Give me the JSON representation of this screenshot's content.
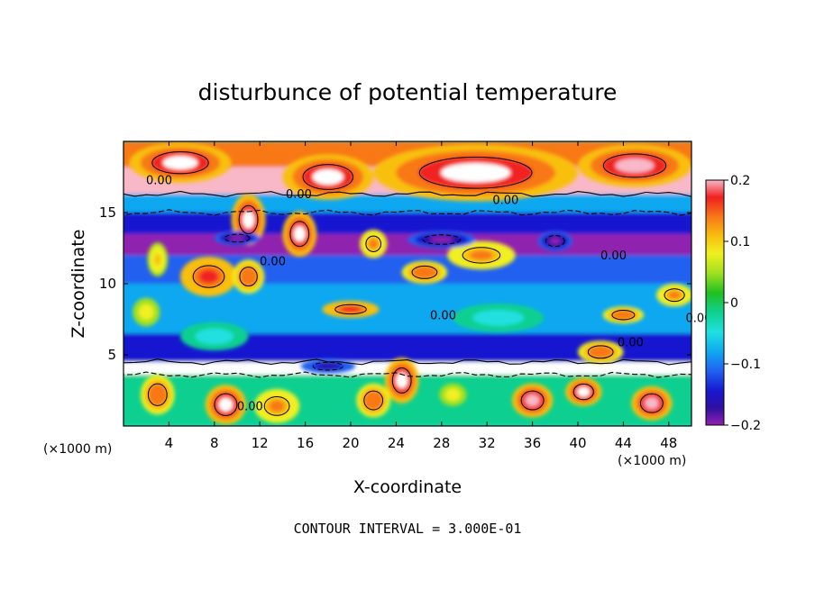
{
  "chart_data": {
    "type": "heatmap",
    "title": "disturbunce of potential temperature",
    "xlabel": "X-coordinate",
    "ylabel": "Z-coordinate",
    "x_unit_left": "(×1000 m)",
    "x_unit_right": "(×1000 m)",
    "xlim": [
      0,
      50
    ],
    "ylim": [
      0,
      20
    ],
    "x_ticks": [
      "4",
      "8",
      "12",
      "16",
      "20",
      "24",
      "28",
      "32",
      "36",
      "40",
      "44",
      "48"
    ],
    "y_ticks": [
      "5",
      "10",
      "15"
    ],
    "colorbar": {
      "ticks": [
        "0.2",
        "0.1",
        "0",
        "−0.1",
        "−0.2"
      ],
      "range": [
        -0.2,
        0.2
      ],
      "colors": [
        "#f8b8c8",
        "#f02020",
        "#f87818",
        "#f8c010",
        "#f0f020",
        "#a0e020",
        "#20c020",
        "#10d090",
        "#20e0e0",
        "#10a8f0",
        "#2060f0",
        "#1818d0",
        "#3010a0",
        "#9020b0"
      ]
    },
    "contour_labels": [
      "0.00",
      "0.00",
      "0.00",
      "0.00",
      "0.00",
      "0.00",
      "0.00",
      "0.00",
      "0.00",
      "0.00",
      "0.00"
    ],
    "footer": "CONTOUR INTERVAL = 3.000E-01",
    "bands": [
      {
        "z_top": 20,
        "z_bot": 18.2,
        "value": 0.12
      },
      {
        "z_top": 18.2,
        "z_bot": 16.3,
        "value": 0.18
      },
      {
        "z_top": 16.3,
        "z_bot": 15.0,
        "value": -0.06
      },
      {
        "z_top": 15.0,
        "z_bot": 13.5,
        "value": -0.13
      },
      {
        "z_top": 13.5,
        "z_bot": 12.0,
        "value": -0.18
      },
      {
        "z_top": 12.0,
        "z_bot": 10.0,
        "value": -0.1
      },
      {
        "z_top": 10.0,
        "z_bot": 6.5,
        "value": -0.06
      },
      {
        "z_top": 6.5,
        "z_bot": 4.5,
        "value": -0.12
      },
      {
        "z_top": 4.5,
        "z_bot": 3.6,
        "value": 0.2
      },
      {
        "z_top": 3.6,
        "z_bot": 0,
        "value": -0.02
      }
    ],
    "blobs": [
      {
        "x": 5,
        "z": 18.5,
        "rx": 4.5,
        "rz": 1.4,
        "value": 0.2
      },
      {
        "x": 18,
        "z": 17.5,
        "rx": 4,
        "rz": 1.6,
        "value": 0.2
      },
      {
        "x": 31,
        "z": 17.8,
        "rx": 9,
        "rz": 2.0,
        "value": 0.2
      },
      {
        "x": 45,
        "z": 18.3,
        "rx": 5,
        "rz": 1.5,
        "value": 0.18
      },
      {
        "x": 11,
        "z": 14.5,
        "rx": 1.5,
        "rz": 1.8,
        "value": 0.2
      },
      {
        "x": 15.5,
        "z": 13.5,
        "rx": 1.5,
        "rz": 1.6,
        "value": 0.2
      },
      {
        "x": 7.5,
        "z": 10.5,
        "rx": 2.5,
        "rz": 1.4,
        "value": 0.16
      },
      {
        "x": 11,
        "z": 10.5,
        "rx": 1.4,
        "rz": 1.2,
        "value": 0.14
      },
      {
        "x": 20,
        "z": 8.2,
        "rx": 2.5,
        "rz": 0.6,
        "value": 0.16
      },
      {
        "x": 26.5,
        "z": 10.8,
        "rx": 2,
        "rz": 0.8,
        "value": 0.14
      },
      {
        "x": 31.5,
        "z": 12,
        "rx": 3,
        "rz": 1.0,
        "value": 0.12
      },
      {
        "x": 22,
        "z": 12.8,
        "rx": 1.2,
        "rz": 1.0,
        "value": 0.12
      },
      {
        "x": 3,
        "z": 11.7,
        "rx": 0.9,
        "rz": 1.2,
        "value": 0.1
      },
      {
        "x": 48.5,
        "z": 9.2,
        "rx": 1.6,
        "rz": 0.8,
        "value": 0.12
      },
      {
        "x": 44,
        "z": 7.8,
        "rx": 1.8,
        "rz": 0.6,
        "value": 0.14
      },
      {
        "x": 24.5,
        "z": 3.2,
        "rx": 1.5,
        "rz": 1.6,
        "value": 0.2
      },
      {
        "x": 42,
        "z": 5.2,
        "rx": 2,
        "rz": 0.8,
        "value": 0.14
      },
      {
        "x": 9,
        "z": 1.5,
        "rx": 1.8,
        "rz": 1.4,
        "value": 0.2
      },
      {
        "x": 13.5,
        "z": 1.4,
        "rx": 2,
        "rz": 1.2,
        "value": 0.12
      },
      {
        "x": 36,
        "z": 1.8,
        "rx": 1.8,
        "rz": 1.2,
        "value": 0.18
      },
      {
        "x": 46.5,
        "z": 1.6,
        "rx": 1.8,
        "rz": 1.2,
        "value": 0.18
      },
      {
        "x": 22,
        "z": 1.8,
        "rx": 1.5,
        "rz": 1.2,
        "value": 0.14
      },
      {
        "x": 3,
        "z": 2.2,
        "rx": 1.5,
        "rz": 1.4,
        "value": 0.14
      },
      {
        "x": 40.5,
        "z": 2.4,
        "rx": 1.6,
        "rz": 1.0,
        "value": 0.2
      },
      {
        "x": 29,
        "z": 2.2,
        "rx": 1.2,
        "rz": 0.8,
        "value": 0.08
      },
      {
        "x": 38,
        "z": 13,
        "rx": 1.5,
        "rz": 0.7,
        "value": -0.2
      },
      {
        "x": 10,
        "z": 13.2,
        "rx": 2,
        "rz": 0.5,
        "value": -0.2
      },
      {
        "x": 28,
        "z": 13.1,
        "rx": 3,
        "rz": 0.6,
        "value": -0.2
      },
      {
        "x": 8,
        "z": 6.3,
        "rx": 3,
        "rz": 1.0,
        "value": -0.04
      },
      {
        "x": 33,
        "z": 7.6,
        "rx": 4,
        "rz": 1.0,
        "value": -0.04
      },
      {
        "x": 2,
        "z": 8,
        "rx": 1.2,
        "rz": 1.0,
        "value": 0.08
      },
      {
        "x": 18,
        "z": 4.2,
        "rx": 2.4,
        "rz": 0.5,
        "value": -0.16
      }
    ]
  }
}
